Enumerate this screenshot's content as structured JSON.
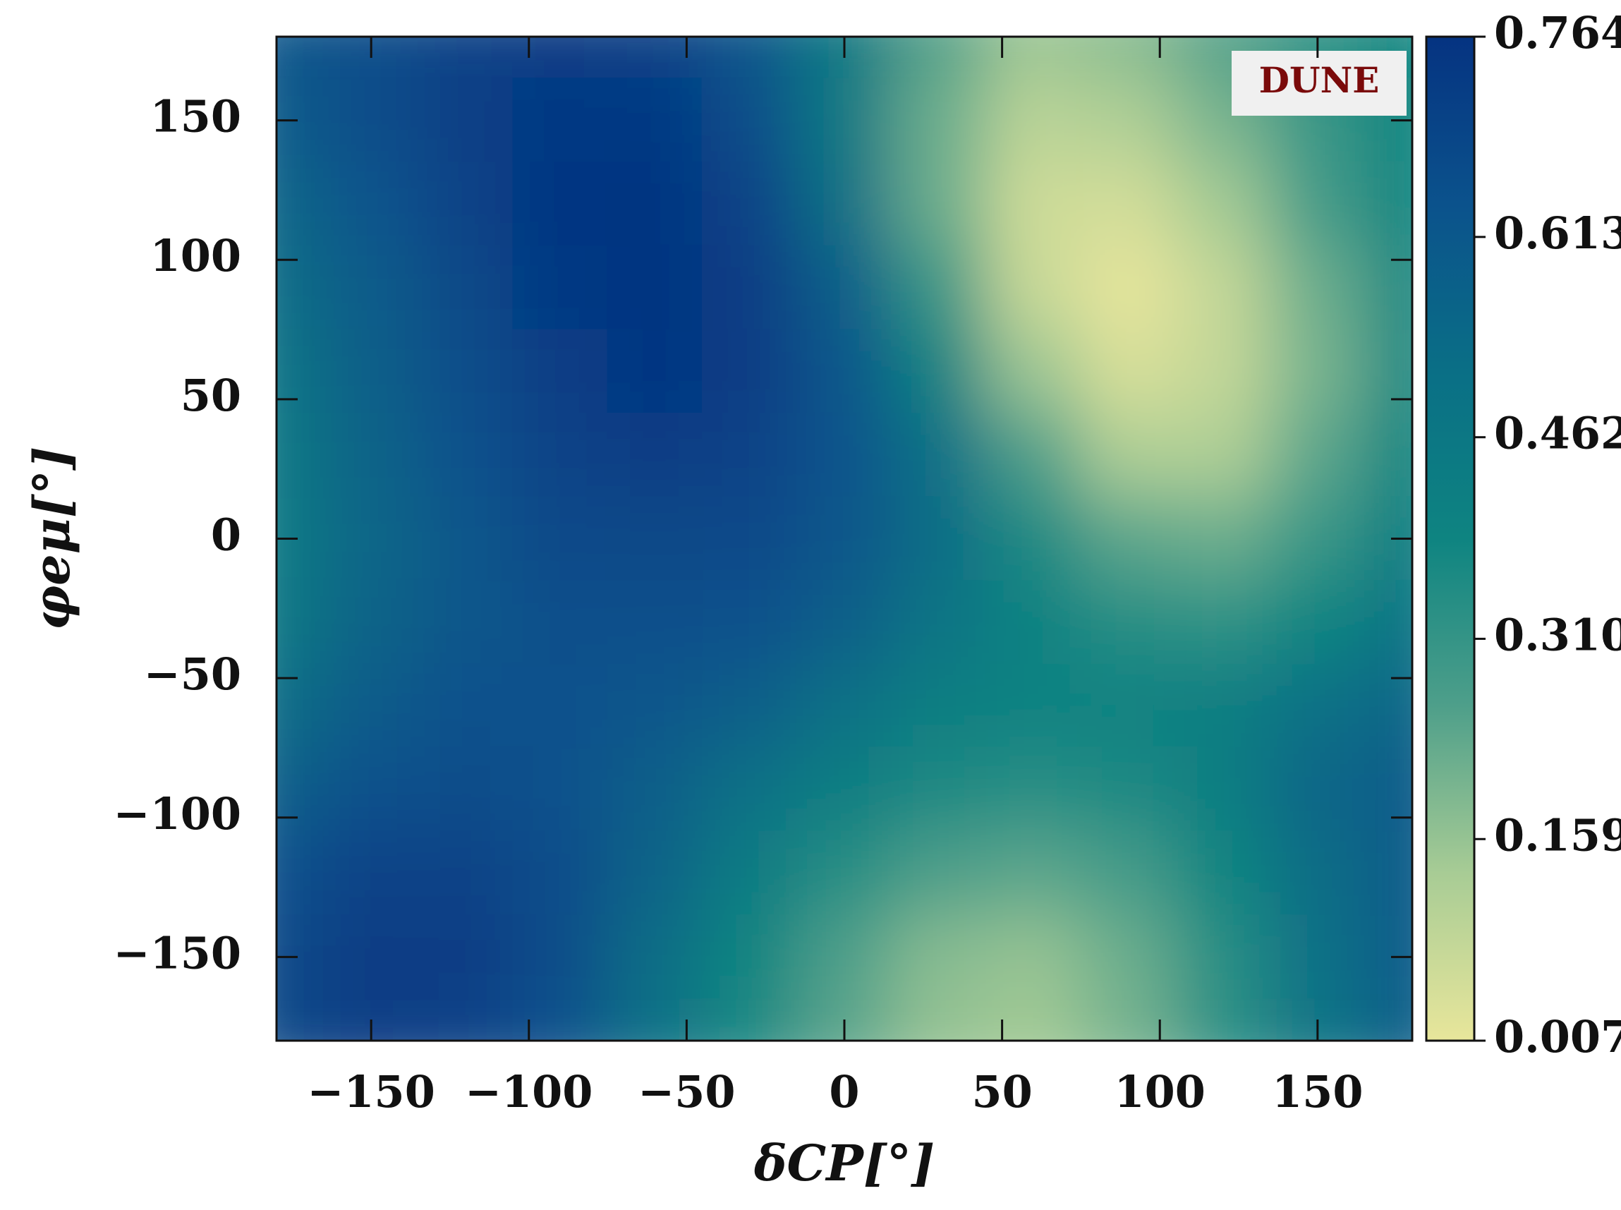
{
  "chart_data": {
    "type": "heatmap",
    "x_label": "δCP[°]",
    "y_label": "φeμ[°]",
    "annotation": "DUNE",
    "x": [
      -180,
      -150,
      -120,
      -90,
      -60,
      -30,
      0,
      30,
      60,
      90,
      120,
      150,
      180
    ],
    "y": [
      180,
      150,
      120,
      90,
      60,
      30,
      0,
      -30,
      -60,
      -90,
      -120,
      -150,
      -180
    ],
    "z": [
      [
        0.62,
        0.66,
        0.7,
        0.72,
        0.7,
        0.62,
        0.45,
        0.25,
        0.15,
        0.18,
        0.25,
        0.32,
        0.38
      ],
      [
        0.6,
        0.66,
        0.71,
        0.74,
        0.74,
        0.66,
        0.45,
        0.22,
        0.1,
        0.12,
        0.2,
        0.3,
        0.38
      ],
      [
        0.55,
        0.63,
        0.7,
        0.75,
        0.76,
        0.7,
        0.5,
        0.22,
        0.06,
        0.05,
        0.14,
        0.28,
        0.38
      ],
      [
        0.52,
        0.6,
        0.68,
        0.74,
        0.76,
        0.72,
        0.58,
        0.3,
        0.07,
        0.01,
        0.08,
        0.22,
        0.36
      ],
      [
        0.48,
        0.58,
        0.66,
        0.72,
        0.75,
        0.72,
        0.62,
        0.4,
        0.15,
        0.04,
        0.08,
        0.2,
        0.36
      ],
      [
        0.46,
        0.56,
        0.64,
        0.7,
        0.72,
        0.7,
        0.63,
        0.5,
        0.26,
        0.12,
        0.12,
        0.24,
        0.38
      ],
      [
        0.45,
        0.55,
        0.62,
        0.67,
        0.68,
        0.67,
        0.62,
        0.52,
        0.36,
        0.24,
        0.22,
        0.3,
        0.42
      ],
      [
        0.46,
        0.56,
        0.62,
        0.65,
        0.65,
        0.64,
        0.58,
        0.48,
        0.4,
        0.34,
        0.32,
        0.38,
        0.48
      ],
      [
        0.52,
        0.6,
        0.64,
        0.64,
        0.62,
        0.58,
        0.5,
        0.42,
        0.4,
        0.4,
        0.42,
        0.5,
        0.55
      ],
      [
        0.58,
        0.64,
        0.66,
        0.64,
        0.58,
        0.5,
        0.42,
        0.36,
        0.34,
        0.36,
        0.42,
        0.55,
        0.6
      ],
      [
        0.64,
        0.7,
        0.7,
        0.66,
        0.56,
        0.44,
        0.34,
        0.26,
        0.24,
        0.28,
        0.38,
        0.52,
        0.6
      ],
      [
        0.68,
        0.72,
        0.72,
        0.66,
        0.52,
        0.38,
        0.26,
        0.18,
        0.16,
        0.22,
        0.34,
        0.5,
        0.6
      ],
      [
        0.68,
        0.72,
        0.7,
        0.64,
        0.5,
        0.36,
        0.24,
        0.16,
        0.14,
        0.2,
        0.32,
        0.48,
        0.58
      ]
    ],
    "xlim": [
      -180,
      180
    ],
    "ylim": [
      -180,
      180
    ],
    "xticks": [
      {
        "value": -150,
        "label": "−150"
      },
      {
        "value": -100,
        "label": "−100"
      },
      {
        "value": -50,
        "label": "−50"
      },
      0,
      50,
      100,
      150
    ],
    "yticks": [
      {
        "value": -150,
        "label": "−150"
      },
      {
        "value": -100,
        "label": "−100"
      },
      {
        "value": -50,
        "label": "−50"
      },
      0,
      50,
      100,
      150
    ],
    "zlim": [
      0.007,
      0.764
    ],
    "zticks": [
      {
        "value": 0.007,
        "label": "0.007"
      },
      {
        "value": 0.159,
        "label": "0.159"
      },
      {
        "value": 0.31,
        "label": "0.310"
      },
      {
        "value": 0.462,
        "label": "0.462"
      },
      {
        "value": 0.613,
        "label": "0.613"
      },
      {
        "value": 0.764,
        "label": "0.764"
      }
    ],
    "colormap": [
      "#e8e69b",
      "#a8cc95",
      "#4e9f8a",
      "#0e8481",
      "#0a6f86",
      "#0b528c",
      "#053381"
    ]
  }
}
